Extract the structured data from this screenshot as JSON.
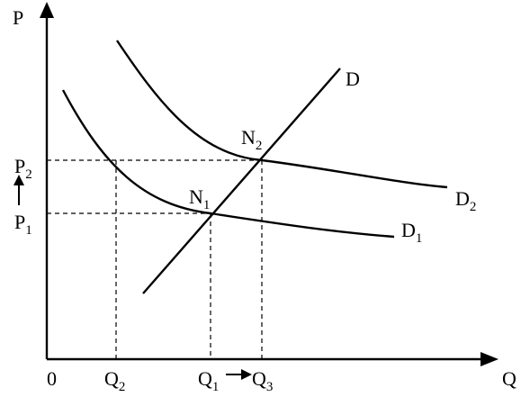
{
  "axes": {
    "y_label": "P",
    "x_label": "Q",
    "origin": "0"
  },
  "curves": {
    "supply": {
      "label": "D"
    },
    "demand_1": {
      "label_main": "D",
      "label_sub": "1"
    },
    "demand_2": {
      "label_main": "D",
      "label_sub": "2"
    }
  },
  "points": {
    "n1": {
      "main": "N",
      "sub": "1"
    },
    "n2": {
      "main": "N",
      "sub": "2"
    }
  },
  "price_ticks": [
    {
      "id": "p2",
      "main": "P",
      "sub": "2"
    },
    {
      "id": "p1",
      "main": "P",
      "sub": "1"
    }
  ],
  "quantity_ticks": [
    {
      "id": "q2",
      "main": "Q",
      "sub": "2"
    },
    {
      "id": "q1",
      "main": "Q",
      "sub": "1"
    },
    {
      "id": "q3",
      "main": "Q",
      "sub": "3"
    }
  ]
}
